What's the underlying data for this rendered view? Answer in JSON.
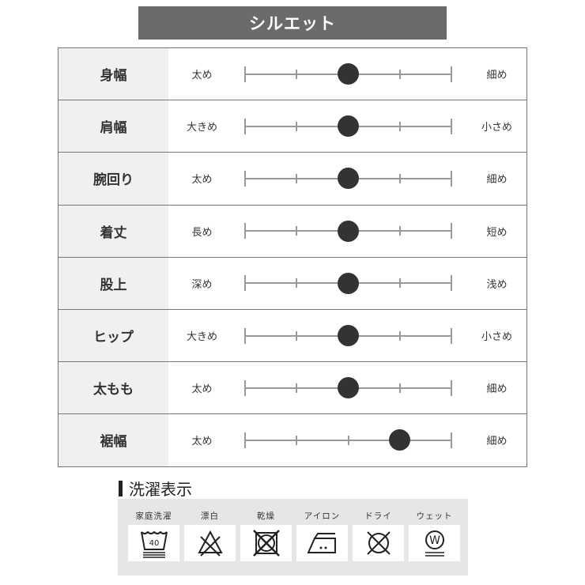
{
  "title": "シルエット",
  "rows": [
    {
      "label": "身幅",
      "left": "太め",
      "right": "細め",
      "position": 0.5
    },
    {
      "label": "肩幅",
      "left": "大きめ",
      "right": "小さめ",
      "position": 0.5
    },
    {
      "label": "腕回り",
      "left": "太め",
      "right": "細め",
      "position": 0.5
    },
    {
      "label": "着丈",
      "left": "長め",
      "right": "短め",
      "position": 0.5
    },
    {
      "label": "股上",
      "left": "深め",
      "right": "浅め",
      "position": 0.5
    },
    {
      "label": "ヒップ",
      "left": "大きめ",
      "right": "小さめ",
      "position": 0.5
    },
    {
      "label": "太もも",
      "left": "太め",
      "right": "細め",
      "position": 0.5
    },
    {
      "label": "裾幅",
      "left": "太め",
      "right": "細め",
      "position": 0.75
    }
  ],
  "wash": {
    "title": "洗濯表示",
    "items": [
      {
        "label": "家庭洗濯",
        "icon": "wash-tub-40-icon",
        "temp": "40"
      },
      {
        "label": "漂白",
        "icon": "no-bleach-icon"
      },
      {
        "label": "乾燥",
        "icon": "no-tumble-dry-icon"
      },
      {
        "label": "アイロン",
        "icon": "iron-medium-icon"
      },
      {
        "label": "ドライ",
        "icon": "no-dry-clean-icon"
      },
      {
        "label": "ウェット",
        "icon": "wet-clean-gentle-icon",
        "letter": "W"
      }
    ]
  }
}
